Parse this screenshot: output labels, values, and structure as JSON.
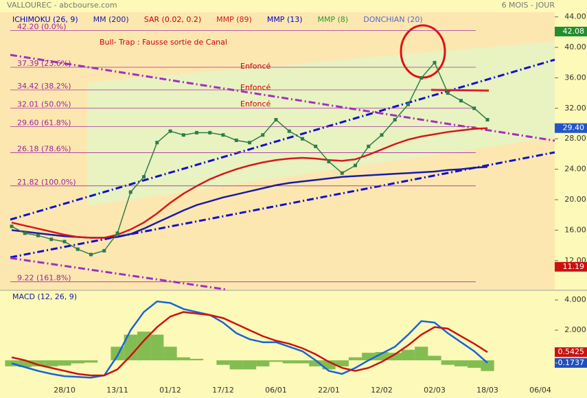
{
  "header": {
    "left": "VALLOUREC - abcbourse.com",
    "right": "6 MOIS - JOUR"
  },
  "chart_data": [
    {
      "type": "line",
      "color": "#2e7d4a",
      "categories": [
        null,
        null,
        null,
        null,
        "28/10",
        null,
        null,
        null,
        "13/11",
        null,
        null,
        null,
        "01/12",
        null,
        null,
        null,
        "17/12",
        null,
        null,
        null,
        "06/01",
        null,
        null,
        null,
        "22/01",
        null,
        null,
        null,
        "12/02",
        null,
        null,
        null,
        "02/03",
        null,
        null,
        null,
        "18/03",
        null,
        null,
        null,
        "06/04"
      ],
      "values": [
        16.5,
        15.6,
        15.3,
        14.8,
        14.5,
        13.5,
        12.8,
        13.3,
        15.6,
        21,
        23,
        27.5,
        29,
        28.5,
        28.8,
        28.8,
        28.5,
        27.8,
        27.5,
        28.5,
        30.5,
        29,
        28,
        27,
        25,
        23.5,
        24.5,
        27,
        28.5,
        30.5,
        32.5,
        36,
        38,
        34,
        33,
        32,
        30.5,
        null,
        null,
        null,
        null
      ],
      "series": [
        {
          "name": "ICHIMOKU (26, 9)",
          "color": "#0000cc"
        },
        {
          "name": "MM (200)",
          "color": "#1a1aa8",
          "values": [
            16,
            15.8,
            15.6,
            15.4,
            15.2,
            15.1,
            15,
            15,
            15.1,
            15.5,
            16.2,
            17,
            17.8,
            18.6,
            19.3,
            19.8,
            20.3,
            20.7,
            21.1,
            21.5,
            21.9,
            22.2,
            22.4,
            22.6,
            22.8,
            23,
            23.1,
            23.2,
            23.3,
            23.4,
            23.5,
            23.6,
            23.7,
            23.9,
            24,
            24.2,
            24.3,
            null,
            null,
            null,
            null
          ]
        },
        {
          "name": "SAR (0.02, 0.2)",
          "color": "#cc0000"
        },
        {
          "name": "MMP (89)",
          "color": "#d41818",
          "values": [
            17,
            16.6,
            16.2,
            15.8,
            15.4,
            15.1,
            15,
            15,
            15.4,
            16.1,
            17,
            18.2,
            19.6,
            20.8,
            21.8,
            22.7,
            23.4,
            24,
            24.5,
            24.9,
            25.2,
            25.4,
            25.5,
            25.4,
            25.2,
            25.1,
            25.3,
            25.9,
            26.6,
            27.3,
            27.9,
            28.3,
            28.6,
            28.9,
            29.1,
            29.3,
            29.4,
            null,
            null,
            null,
            null
          ]
        },
        {
          "name": "MMP (13)",
          "color": "#0000cc"
        },
        {
          "name": "MMP (8)",
          "color": "#2a9a2a"
        },
        {
          "name": "DONCHIAN (20)",
          "color": "#5566cc"
        }
      ],
      "ylim": [
        8.2,
        44.6
      ],
      "yticks": [
        {
          "value": 12,
          "label": "12.00"
        },
        {
          "value": 16,
          "label": "16.00"
        },
        {
          "value": 20,
          "label": "20.00"
        },
        {
          "value": 24,
          "label": "24.00"
        },
        {
          "value": 28,
          "label": "28.00"
        },
        {
          "value": 32,
          "label": "32.00"
        },
        {
          "value": 36,
          "label": "36.00"
        },
        {
          "value": 40,
          "label": "40.00"
        },
        {
          "value": 44,
          "label": "44.00"
        }
      ],
      "fib_lines": [
        {
          "value": 42.2,
          "label": "42.20 (0.0%)"
        },
        {
          "value": 37.39,
          "label": "37.39 (23.6%)"
        },
        {
          "value": 34.42,
          "label": "34.42 (38.2%)"
        },
        {
          "value": 32.01,
          "label": "32.01 (50.0%)"
        },
        {
          "value": 29.6,
          "label": "29.60 (61.8%)"
        },
        {
          "value": 26.18,
          "label": "26.18 (78.6%)"
        },
        {
          "value": 21.82,
          "label": "21.82 (100.0%)"
        },
        {
          "value": 9.22,
          "label": "9.22 (161.8%)"
        }
      ],
      "price_tags": [
        {
          "value": 42.08,
          "color": "#1f8f2f"
        },
        {
          "value": 29.4,
          "label": "29.40",
          "color": "#2255cc"
        },
        {
          "value": 11.19,
          "color": "#cc1111"
        }
      ],
      "annotations": [
        "Bull- Trap : Fausse sortie de Canal",
        "Enfoncé",
        "Enfoncé",
        "Enfoncé"
      ]
    },
    {
      "type": "macd",
      "title": "MACD (12, 26, 9)",
      "series": [
        {
          "color": "#1565d8",
          "values": [
            -0.2,
            -0.45,
            -0.7,
            -0.9,
            -1.05,
            -1.1,
            -1.15,
            -1.0,
            0.3,
            2.0,
            3.2,
            3.9,
            3.8,
            3.4,
            3.2,
            3.0,
            2.5,
            1.8,
            1.4,
            1.2,
            1.2,
            0.9,
            0.6,
            0,
            -0.7,
            -0.9,
            -0.5,
            0,
            0.45,
            0.9,
            1.7,
            2.6,
            2.5,
            1.8,
            1.2,
            0.6,
            -0.17,
            null,
            null,
            null,
            null
          ]
        },
        {
          "color": "#cc1111",
          "values": [
            0.2,
            0,
            -0.3,
            -0.5,
            -0.7,
            -0.9,
            -1.0,
            -1.0,
            -0.6,
            0.3,
            1.3,
            2.2,
            2.9,
            3.2,
            3.1,
            3.0,
            2.8,
            2.4,
            2.0,
            1.6,
            1.3,
            1.1,
            0.8,
            0.4,
            -0.1,
            -0.5,
            -0.7,
            -0.5,
            -0.1,
            0.4,
            1.0,
            1.7,
            2.2,
            2.1,
            1.6,
            1.1,
            0.54,
            null,
            null,
            null,
            null
          ]
        }
      ],
      "histogram": {
        "color": "#6db33f",
        "values": [
          -0.4,
          -0.45,
          -0.4,
          -0.4,
          -0.35,
          -0.2,
          -0.15,
          0,
          0.9,
          1.7,
          1.9,
          1.7,
          0.9,
          0.2,
          0.1,
          0,
          -0.3,
          -0.6,
          -0.6,
          -0.4,
          -0.1,
          -0.2,
          -0.2,
          -0.4,
          -0.6,
          -0.4,
          0.2,
          0.5,
          0.55,
          0.5,
          0.7,
          0.9,
          0.3,
          -0.3,
          -0.4,
          -0.5,
          -0.71,
          null,
          null,
          null,
          null
        ]
      },
      "ylim": [
        -1.36,
        4.55
      ],
      "yticks": [
        {
          "value": 2,
          "label": "2.000"
        },
        {
          "value": 4,
          "label": "4.000"
        }
      ],
      "price_tags": [
        {
          "value": 0.5425,
          "color": "#cc1111"
        },
        {
          "value": -0.1737,
          "color": "#1f4fbf"
        }
      ]
    }
  ]
}
